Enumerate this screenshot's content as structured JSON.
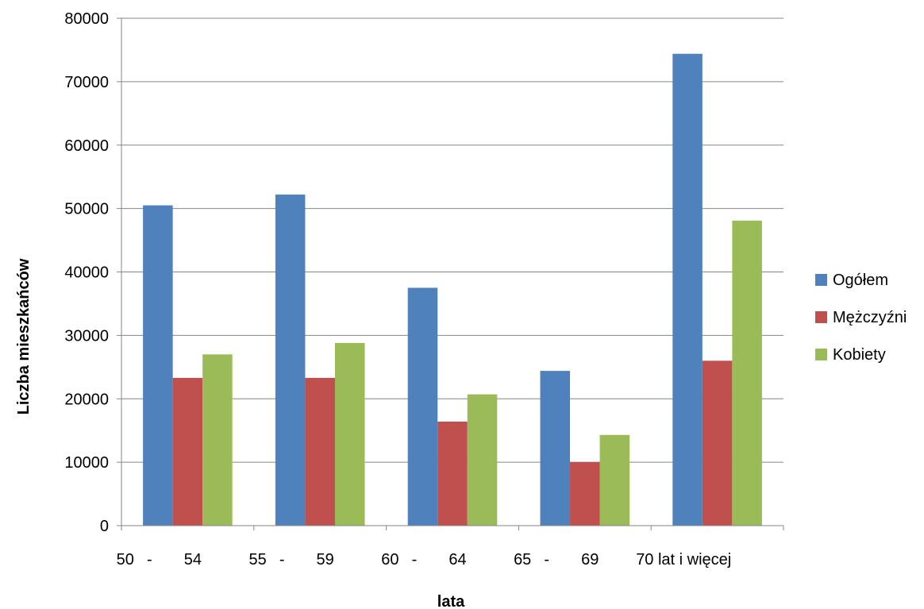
{
  "chart_data": {
    "type": "bar",
    "title": "",
    "xlabel": "lata",
    "ylabel": "Liczba mieszkańców",
    "categories": [
      "50 - 54",
      "55 - 59",
      "60 - 64",
      "65 - 69",
      "70 lat i więcej"
    ],
    "category_labels": [
      {
        "parts": [
          "50",
          "-",
          "54"
        ]
      },
      {
        "parts": [
          "55",
          "-",
          "59"
        ]
      },
      {
        "parts": [
          "60",
          "-",
          "64"
        ]
      },
      {
        "parts": [
          "65",
          "-",
          "69"
        ]
      },
      {
        "parts": [
          "70 lat i więcej"
        ]
      }
    ],
    "series": [
      {
        "name": "Ogółem",
        "color": "#4F81BD",
        "values": [
          50500,
          52200,
          37500,
          24400,
          74400
        ]
      },
      {
        "name": "Mężczyźni",
        "color": "#C0504D",
        "values": [
          23300,
          23300,
          16400,
          10000,
          26000
        ]
      },
      {
        "name": "Kobiety",
        "color": "#9BBB59",
        "values": [
          27000,
          28800,
          20700,
          14300,
          48100
        ]
      }
    ],
    "ylim": [
      0,
      80000
    ],
    "yticks": [
      0,
      10000,
      20000,
      30000,
      40000,
      50000,
      60000,
      70000,
      80000
    ],
    "grid": true,
    "legend_position": "right"
  }
}
